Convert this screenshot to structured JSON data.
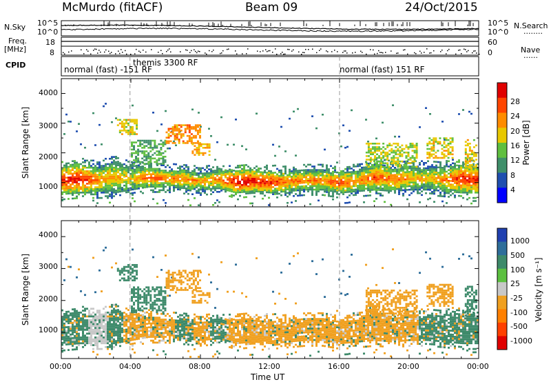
{
  "header": {
    "station": "McMurdo (fitACF)",
    "beam": "Beam 09",
    "date": "24/Oct/2015"
  },
  "side_labels": {
    "nsky": "N.Sky",
    "freq_line1": "Freq.",
    "freq_line2": "[MHz]",
    "cpid": "CPID",
    "nsearch": "N.Search",
    "nave": "Nave",
    "dots_short": "........",
    "dots_shorter": "......"
  },
  "strip_ticks": {
    "nsky_top": "10^5",
    "nsky_bottom": "10^0",
    "nsearch_top": "10^5",
    "nsearch_bottom": "10^0",
    "freq_top": "18",
    "freq_bottom": "8",
    "nave_top": "60",
    "nave_bottom": "0"
  },
  "cpid_modes": [
    {
      "text": "normal (fast) -151 RF",
      "start_hour": 0
    },
    {
      "text": "themis 3300 RF",
      "start_hour": 3.95
    },
    {
      "text": "normal (fast) 151 RF",
      "start_hour": 16
    }
  ],
  "axes": {
    "ylabel": "Slant Range [km]",
    "xlabel": "Time UT",
    "y_ticks": [
      "1000",
      "2000",
      "3000",
      "4000"
    ],
    "x_ticks": [
      "00:00",
      "04:00",
      "08:00",
      "12:00",
      "16:00",
      "20:00",
      "00:00"
    ]
  },
  "power_colorbar": {
    "label": "Power [dB]",
    "ticks": [
      "4",
      "8",
      "12",
      "16",
      "20",
      "24",
      "28"
    ],
    "colors": [
      "#0000ff",
      "#1f4fb0",
      "#3f8f6a",
      "#5fbf3f",
      "#e8c800",
      "#ff8c00",
      "#ff4500",
      "#e00000"
    ]
  },
  "velocity_colorbar": {
    "label": "Velocity [m s⁻¹]",
    "ticks": [
      "1000",
      "500",
      "100",
      "25",
      "-25",
      "-100",
      "-500",
      "-1000"
    ],
    "colors": [
      "#2040b0",
      "#2e6e9a",
      "#3d8a6a",
      "#5cc040",
      "#c8c8c8",
      "#f0a020",
      "#ff8000",
      "#ff4000",
      "#e00000"
    ]
  },
  "chart_data": {
    "type": "heatmap",
    "panels": [
      "Power [dB]",
      "Velocity [m s⁻¹]"
    ],
    "x_range_hours": [
      0,
      24
    ],
    "y_range_km": [
      180,
      4500
    ],
    "scatter_band": [
      {
        "t": 0,
        "lo": 550,
        "hi": 1500,
        "p": 24,
        "v": 100
      },
      {
        "t": 1,
        "lo": 600,
        "hi": 1600,
        "p": 26,
        "v": 100
      },
      {
        "t": 2,
        "lo": 600,
        "hi": 1500,
        "p": 20,
        "v": -25
      },
      {
        "t": 3,
        "lo": 600,
        "hi": 1700,
        "p": 18,
        "v": 100
      },
      {
        "t": 4,
        "lo": 700,
        "hi": 1500,
        "p": 16,
        "v": -100
      },
      {
        "t": 5,
        "lo": 800,
        "hi": 1500,
        "p": 22,
        "v": -100
      },
      {
        "t": 6,
        "lo": 800,
        "hi": 1400,
        "p": 20,
        "v": -100
      },
      {
        "t": 7,
        "lo": 750,
        "hi": 1400,
        "p": 20,
        "v": 100
      },
      {
        "t": 8,
        "lo": 700,
        "hi": 1300,
        "p": 18,
        "v": -100
      },
      {
        "t": 9,
        "lo": 750,
        "hi": 1400,
        "p": 20,
        "v": 100
      },
      {
        "t": 10,
        "lo": 600,
        "hi": 1400,
        "p": 26,
        "v": -100
      },
      {
        "t": 11,
        "lo": 650,
        "hi": 1400,
        "p": 26,
        "v": -100
      },
      {
        "t": 12,
        "lo": 600,
        "hi": 1350,
        "p": 24,
        "v": -100
      },
      {
        "t": 13,
        "lo": 650,
        "hi": 1350,
        "p": 20,
        "v": -100
      },
      {
        "t": 14,
        "lo": 700,
        "hi": 1400,
        "p": 20,
        "v": -100
      },
      {
        "t": 15,
        "lo": 700,
        "hi": 1400,
        "p": 20,
        "v": -100
      },
      {
        "t": 16,
        "lo": 600,
        "hi": 1300,
        "p": 24,
        "v": -100
      },
      {
        "t": 17,
        "lo": 650,
        "hi": 1400,
        "p": 18,
        "v": -100
      },
      {
        "t": 18,
        "lo": 700,
        "hi": 1600,
        "p": 22,
        "v": -100
      },
      {
        "t": 19,
        "lo": 650,
        "hi": 1500,
        "p": 20,
        "v": -100
      },
      {
        "t": 20,
        "lo": 700,
        "hi": 1500,
        "p": 18,
        "v": -100
      },
      {
        "t": 21,
        "lo": 700,
        "hi": 1500,
        "p": 16,
        "v": 100
      },
      {
        "t": 22,
        "lo": 650,
        "hi": 1500,
        "p": 20,
        "v": 100
      },
      {
        "t": 23,
        "lo": 600,
        "hi": 1600,
        "p": 24,
        "v": 100
      },
      {
        "t": 24,
        "lo": 600,
        "hi": 1500,
        "p": 24,
        "v": 100
      }
    ],
    "features": [
      {
        "t0": 3.2,
        "t1": 4.4,
        "lo": 2600,
        "hi": 3100,
        "p": 18,
        "v": 100
      },
      {
        "t0": 4.0,
        "t1": 6.0,
        "lo": 1600,
        "hi": 2400,
        "p": 12,
        "v": 100
      },
      {
        "t0": 6.0,
        "t1": 8.0,
        "lo": 2300,
        "hi": 2900,
        "p": 22,
        "v": -100
      },
      {
        "t0": 7.5,
        "t1": 8.5,
        "lo": 1900,
        "hi": 2300,
        "p": 20,
        "v": -100
      },
      {
        "t0": 17.5,
        "t1": 20.5,
        "lo": 1500,
        "hi": 2300,
        "p": 16,
        "v": -100
      },
      {
        "t0": 21.0,
        "t1": 22.5,
        "lo": 1800,
        "hi": 2500,
        "p": 18,
        "v": -100
      },
      {
        "t0": 23.2,
        "t1": 23.9,
        "lo": 1500,
        "hi": 2400,
        "p": 18,
        "v": 100
      }
    ]
  }
}
